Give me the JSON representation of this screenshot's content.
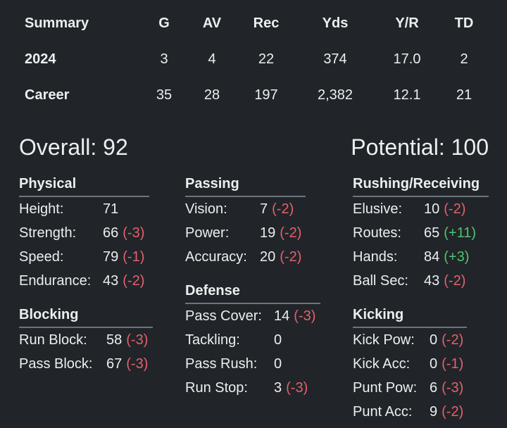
{
  "summary": {
    "header": [
      "Summary",
      "G",
      "AV",
      "Rec",
      "Yds",
      "Y/R",
      "TD"
    ],
    "rows": [
      [
        "2024",
        "3",
        "4",
        "22",
        "374",
        "17.0",
        "2"
      ],
      [
        "Career",
        "35",
        "28",
        "197",
        "2,382",
        "12.1",
        "21"
      ]
    ]
  },
  "overall": "Overall: 92",
  "potential": "Potential: 100",
  "sections": [
    {
      "title": "Physical",
      "rows": [
        {
          "label": "Height:",
          "value": "71"
        },
        {
          "label": "Strength:",
          "value": "66",
          "delta": "(-3)"
        },
        {
          "label": "Speed:",
          "value": "79",
          "delta": "(-1)"
        },
        {
          "label": "Endurance:",
          "value": "43",
          "delta": "(-2)"
        }
      ]
    },
    {
      "title": "Blocking",
      "rows": [
        {
          "label": "Run Block:",
          "value": "58",
          "delta": "(-3)"
        },
        {
          "label": "Pass Block:",
          "value": "67",
          "delta": "(-3)"
        }
      ]
    },
    {
      "title": "Passing",
      "rows": [
        {
          "label": "Vision:",
          "value": "7",
          "delta": "(-2)"
        },
        {
          "label": "Power:",
          "value": "19",
          "delta": "(-2)"
        },
        {
          "label": "Accuracy:",
          "value": "20",
          "delta": "(-2)"
        }
      ]
    },
    {
      "title": "Defense",
      "rows": [
        {
          "label": "Pass Cover:",
          "value": "14",
          "delta": "(-3)"
        },
        {
          "label": "Tackling:",
          "value": "0"
        },
        {
          "label": "Pass Rush:",
          "value": "0"
        },
        {
          "label": "Run Stop:",
          "value": "3",
          "delta": "(-3)"
        }
      ]
    },
    {
      "title": "Rushing/Receiving",
      "rows": [
        {
          "label": "Elusive:",
          "value": "10",
          "delta": "(-2)"
        },
        {
          "label": "Routes:",
          "value": "65",
          "delta": "(+11)"
        },
        {
          "label": "Hands:",
          "value": "84",
          "delta": "(+3)"
        },
        {
          "label": "Ball Sec:",
          "value": "43",
          "delta": "(-2)"
        }
      ]
    },
    {
      "title": "Kicking",
      "rows": [
        {
          "label": "Kick Pow:",
          "value": "0",
          "delta": "(-2)"
        },
        {
          "label": "Kick Acc:",
          "value": "0",
          "delta": "(-1)"
        },
        {
          "label": "Punt Pow:",
          "value": "6",
          "delta": "(-3)"
        },
        {
          "label": "Punt Acc:",
          "value": "9",
          "delta": "(-2)"
        }
      ]
    }
  ]
}
